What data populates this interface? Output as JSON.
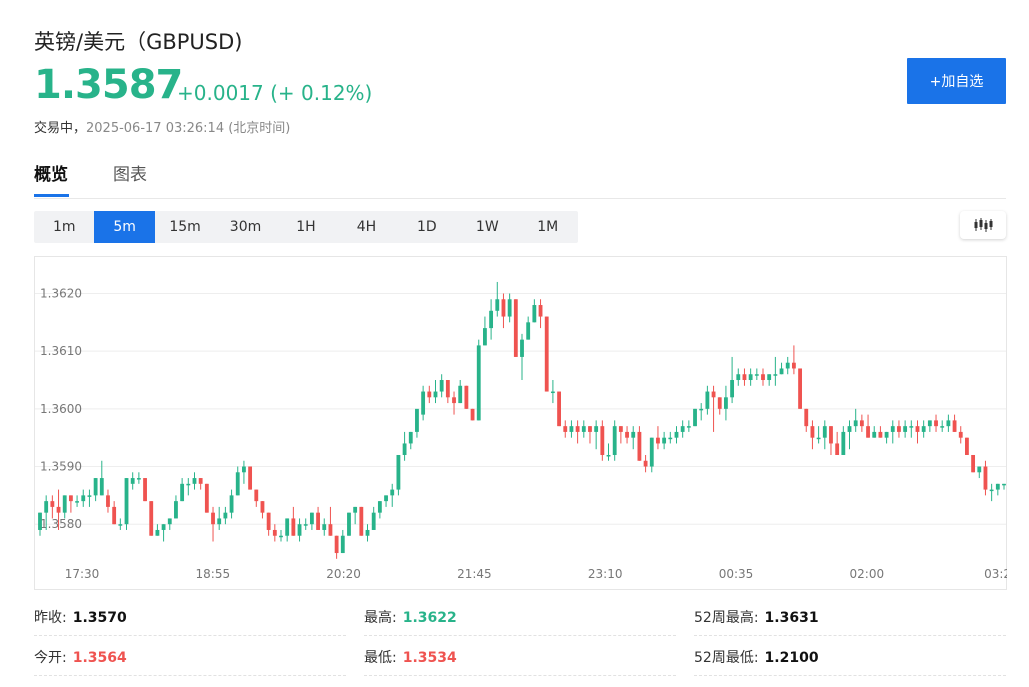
{
  "header": {
    "title": "英镑/美元（GBPUSD)",
    "price": "1.3587",
    "change": "+0.0017 (+ 0.12%)",
    "status": "交易中，",
    "timestamp": "2025-06-17 03:26:14 (北京时间)",
    "watchlist_button": "+加自选"
  },
  "tabs": [
    {
      "label": "概览",
      "active": true
    },
    {
      "label": "图表",
      "active": false
    }
  ],
  "periods": [
    {
      "label": "1m",
      "active": false
    },
    {
      "label": "5m",
      "active": true
    },
    {
      "label": "15m",
      "active": false
    },
    {
      "label": "30m",
      "active": false
    },
    {
      "label": "1H",
      "active": false
    },
    {
      "label": "4H",
      "active": false
    },
    {
      "label": "1D",
      "active": false
    },
    {
      "label": "1W",
      "active": false
    },
    {
      "label": "1M",
      "active": false
    }
  ],
  "toolbar": {
    "chart_type_icon": "candlestick-icon"
  },
  "colors": {
    "up": "#28b38a",
    "down": "#ef5350",
    "accent": "#1a73e8"
  },
  "chart_data": {
    "type": "candlestick",
    "y_ticks": [
      "1.3620",
      "1.3610",
      "1.3600",
      "1.3590",
      "1.3580"
    ],
    "y_tick_values": [
      1.362,
      1.361,
      1.36,
      1.359,
      1.358
    ],
    "x_ticks": [
      "17:30",
      "18:55",
      "20:20",
      "21:45",
      "23:10",
      "00:35",
      "02:00",
      "03:2"
    ],
    "ylim": [
      1.35731,
      1.36265
    ],
    "grid": true,
    "candles_ohlc": [
      [
        1.3579,
        1.3582,
        1.3578,
        1.3582
      ],
      [
        1.3582,
        1.3585,
        1.3579,
        1.3584
      ],
      [
        1.3584,
        1.3585,
        1.3581,
        1.3583
      ],
      [
        1.3583,
        1.3586,
        1.3579,
        1.3582
      ],
      [
        1.3582,
        1.3585,
        1.3581,
        1.3585
      ],
      [
        1.3585,
        1.3585,
        1.3582,
        1.3584
      ],
      [
        1.3584,
        1.3585,
        1.3583,
        1.3584
      ],
      [
        1.3584,
        1.3586,
        1.3583,
        1.3585
      ],
      [
        1.3585,
        1.3586,
        1.3583,
        1.3585
      ],
      [
        1.3585,
        1.3588,
        1.3584,
        1.3588
      ],
      [
        1.3585,
        1.3591,
        1.3585,
        1.3588
      ],
      [
        1.3585,
        1.3586,
        1.3582,
        1.3583
      ],
      [
        1.3583,
        1.3584,
        1.358,
        1.358
      ],
      [
        1.358,
        1.3581,
        1.3579,
        1.358
      ],
      [
        1.358,
        1.3588,
        1.3579,
        1.3588
      ],
      [
        1.3587,
        1.3589,
        1.3586,
        1.3588
      ],
      [
        1.3588,
        1.3589,
        1.3587,
        1.3588
      ],
      [
        1.3588,
        1.3588,
        1.3584,
        1.3584
      ],
      [
        1.3584,
        1.3584,
        1.3578,
        1.3578
      ],
      [
        1.3578,
        1.358,
        1.3578,
        1.3579
      ],
      [
        1.3579,
        1.358,
        1.3577,
        1.358
      ],
      [
        1.358,
        1.3581,
        1.3579,
        1.3581
      ],
      [
        1.3581,
        1.3585,
        1.3581,
        1.3584
      ],
      [
        1.3584,
        1.3588,
        1.3584,
        1.3587
      ],
      [
        1.3587,
        1.3588,
        1.3585,
        1.3587
      ],
      [
        1.3587,
        1.3589,
        1.3586,
        1.3588
      ],
      [
        1.3588,
        1.3588,
        1.3586,
        1.3587
      ],
      [
        1.3587,
        1.3587,
        1.3582,
        1.3582
      ],
      [
        1.3582,
        1.3583,
        1.3577,
        1.358
      ],
      [
        1.358,
        1.3583,
        1.3579,
        1.3581
      ],
      [
        1.3581,
        1.3583,
        1.358,
        1.3582
      ],
      [
        1.3582,
        1.3586,
        1.3581,
        1.3585
      ],
      [
        1.3585,
        1.359,
        1.3585,
        1.3589
      ],
      [
        1.3589,
        1.3591,
        1.3587,
        1.359
      ],
      [
        1.359,
        1.359,
        1.3586,
        1.3586
      ],
      [
        1.3586,
        1.3586,
        1.3583,
        1.3584
      ],
      [
        1.3584,
        1.3584,
        1.3581,
        1.3582
      ],
      [
        1.3582,
        1.3582,
        1.3578,
        1.3579
      ],
      [
        1.3579,
        1.358,
        1.3577,
        1.3578
      ],
      [
        1.3578,
        1.3579,
        1.3577,
        1.3578
      ],
      [
        1.3578,
        1.3581,
        1.3577,
        1.3581
      ],
      [
        1.3581,
        1.3583,
        1.3578,
        1.3578
      ],
      [
        1.3578,
        1.3581,
        1.3577,
        1.358
      ],
      [
        1.358,
        1.3581,
        1.3579,
        1.358
      ],
      [
        1.358,
        1.3582,
        1.3579,
        1.3582
      ],
      [
        1.3582,
        1.3583,
        1.3579,
        1.3579
      ],
      [
        1.3579,
        1.3581,
        1.3578,
        1.358
      ],
      [
        1.358,
        1.3583,
        1.3578,
        1.3578
      ],
      [
        1.3578,
        1.3578,
        1.3574,
        1.3575
      ],
      [
        1.3575,
        1.3579,
        1.3575,
        1.3578
      ],
      [
        1.3578,
        1.3582,
        1.3578,
        1.3582
      ],
      [
        1.3582,
        1.3583,
        1.358,
        1.3583
      ],
      [
        1.3583,
        1.3583,
        1.3578,
        1.3578
      ],
      [
        1.3578,
        1.358,
        1.3577,
        1.3579
      ],
      [
        1.3579,
        1.3583,
        1.3579,
        1.3582
      ],
      [
        1.3582,
        1.3584,
        1.3581,
        1.3584
      ],
      [
        1.3584,
        1.3585,
        1.3583,
        1.3585
      ],
      [
        1.3585,
        1.3587,
        1.3583,
        1.3586
      ],
      [
        1.3586,
        1.3592,
        1.3585,
        1.3592
      ],
      [
        1.3592,
        1.3596,
        1.3591,
        1.3594
      ],
      [
        1.3594,
        1.3596,
        1.3593,
        1.3596
      ],
      [
        1.3596,
        1.3599,
        1.3595,
        1.36
      ],
      [
        1.3599,
        1.3604,
        1.3598,
        1.3603
      ],
      [
        1.3603,
        1.3604,
        1.3601,
        1.3602
      ],
      [
        1.3602,
        1.3605,
        1.3601,
        1.3603
      ],
      [
        1.3603,
        1.3606,
        1.3602,
        1.3605
      ],
      [
        1.3605,
        1.3605,
        1.3601,
        1.3602
      ],
      [
        1.3602,
        1.3603,
        1.3599,
        1.3601
      ],
      [
        1.3601,
        1.3605,
        1.3601,
        1.3604
      ],
      [
        1.3604,
        1.3604,
        1.36,
        1.36
      ],
      [
        1.36,
        1.36,
        1.3598,
        1.3598
      ],
      [
        1.3598,
        1.3612,
        1.3598,
        1.3611
      ],
      [
        1.3611,
        1.3616,
        1.3611,
        1.3614
      ],
      [
        1.3614,
        1.3619,
        1.3612,
        1.3617
      ],
      [
        1.3617,
        1.3622,
        1.3616,
        1.3619
      ],
      [
        1.3619,
        1.362,
        1.3614,
        1.3616
      ],
      [
        1.3616,
        1.362,
        1.3615,
        1.3619
      ],
      [
        1.3619,
        1.3619,
        1.3609,
        1.3609
      ],
      [
        1.3609,
        1.3613,
        1.3605,
        1.3612
      ],
      [
        1.3612,
        1.3616,
        1.3612,
        1.3615
      ],
      [
        1.3615,
        1.3619,
        1.3615,
        1.3618
      ],
      [
        1.3618,
        1.3619,
        1.3614,
        1.3616
      ],
      [
        1.3616,
        1.3616,
        1.3603,
        1.3603
      ],
      [
        1.3603,
        1.3605,
        1.3601,
        1.3603
      ],
      [
        1.3603,
        1.3603,
        1.3597,
        1.3597
      ],
      [
        1.3597,
        1.3598,
        1.3595,
        1.3596
      ],
      [
        1.3596,
        1.3598,
        1.3595,
        1.3597
      ],
      [
        1.3597,
        1.3598,
        1.3594,
        1.3596
      ],
      [
        1.3596,
        1.3598,
        1.3595,
        1.3597
      ],
      [
        1.3597,
        1.3597,
        1.3594,
        1.3596
      ],
      [
        1.3596,
        1.3598,
        1.3593,
        1.3597
      ],
      [
        1.3597,
        1.3598,
        1.3591,
        1.3592
      ],
      [
        1.3592,
        1.3594,
        1.3591,
        1.3592
      ],
      [
        1.3592,
        1.3598,
        1.3591,
        1.3597
      ],
      [
        1.3597,
        1.3597,
        1.3594,
        1.3596
      ],
      [
        1.3596,
        1.3597,
        1.3594,
        1.3595
      ],
      [
        1.3595,
        1.3597,
        1.3593,
        1.3596
      ],
      [
        1.3596,
        1.3597,
        1.3591,
        1.3591
      ],
      [
        1.3591,
        1.3592,
        1.3589,
        1.359
      ],
      [
        1.359,
        1.3595,
        1.3589,
        1.3595
      ],
      [
        1.3595,
        1.3597,
        1.3593,
        1.3594
      ],
      [
        1.3594,
        1.3596,
        1.3593,
        1.3595
      ],
      [
        1.3595,
        1.3596,
        1.3594,
        1.3595
      ],
      [
        1.3595,
        1.3597,
        1.3594,
        1.3596
      ],
      [
        1.3596,
        1.3598,
        1.3595,
        1.3597
      ],
      [
        1.3597,
        1.3598,
        1.3596,
        1.3597
      ],
      [
        1.3597,
        1.36,
        1.3597,
        1.36
      ],
      [
        1.36,
        1.3601,
        1.3598,
        1.36
      ],
      [
        1.36,
        1.3604,
        1.3599,
        1.3603
      ],
      [
        1.3603,
        1.3604,
        1.3596,
        1.3602
      ],
      [
        1.3602,
        1.3602,
        1.3599,
        1.36
      ],
      [
        1.36,
        1.3604,
        1.3598,
        1.3602
      ],
      [
        1.3602,
        1.3609,
        1.3601,
        1.3605
      ],
      [
        1.3605,
        1.3607,
        1.3604,
        1.3606
      ],
      [
        1.3606,
        1.3607,
        1.3604,
        1.3605
      ],
      [
        1.3605,
        1.3607,
        1.3604,
        1.3606
      ],
      [
        1.3606,
        1.3607,
        1.3605,
        1.3606
      ],
      [
        1.3606,
        1.3607,
        1.3604,
        1.3605
      ],
      [
        1.3605,
        1.3606,
        1.3604,
        1.3606
      ],
      [
        1.3606,
        1.3609,
        1.3604,
        1.3606
      ],
      [
        1.3606,
        1.3608,
        1.3606,
        1.3607
      ],
      [
        1.3607,
        1.3609,
        1.3606,
        1.3608
      ],
      [
        1.3608,
        1.3611,
        1.3606,
        1.3607
      ],
      [
        1.3607,
        1.3607,
        1.36,
        1.36
      ],
      [
        1.36,
        1.36,
        1.3596,
        1.3597
      ],
      [
        1.3597,
        1.3598,
        1.3593,
        1.3595
      ],
      [
        1.3595,
        1.3597,
        1.3594,
        1.3595
      ],
      [
        1.3595,
        1.3598,
        1.3593,
        1.3597
      ],
      [
        1.3597,
        1.3597,
        1.3592,
        1.3594
      ],
      [
        1.3594,
        1.3596,
        1.3592,
        1.3592
      ],
      [
        1.3592,
        1.3597,
        1.3592,
        1.3596
      ],
      [
        1.3596,
        1.3598,
        1.3593,
        1.3597
      ],
      [
        1.3597,
        1.36,
        1.3596,
        1.3598
      ],
      [
        1.3598,
        1.3599,
        1.3596,
        1.3597
      ],
      [
        1.3597,
        1.3599,
        1.3595,
        1.3595
      ],
      [
        1.3595,
        1.3597,
        1.3595,
        1.3596
      ],
      [
        1.3596,
        1.3597,
        1.3595,
        1.3595
      ],
      [
        1.3595,
        1.3596,
        1.3594,
        1.3596
      ],
      [
        1.3596,
        1.3598,
        1.3594,
        1.3597
      ],
      [
        1.3597,
        1.3598,
        1.3595,
        1.3596
      ],
      [
        1.3596,
        1.3598,
        1.3595,
        1.3597
      ],
      [
        1.3597,
        1.3598,
        1.3595,
        1.3597
      ],
      [
        1.3597,
        1.3598,
        1.3594,
        1.3596
      ],
      [
        1.3596,
        1.3598,
        1.3595,
        1.3597
      ],
      [
        1.3597,
        1.3598,
        1.3596,
        1.3598
      ],
      [
        1.3598,
        1.3599,
        1.3596,
        1.3597
      ],
      [
        1.3597,
        1.3598,
        1.3596,
        1.3597
      ],
      [
        1.3597,
        1.3599,
        1.3596,
        1.3598
      ],
      [
        1.3598,
        1.3599,
        1.3596,
        1.3596
      ],
      [
        1.3596,
        1.3597,
        1.3594,
        1.3595
      ],
      [
        1.3595,
        1.3595,
        1.3592,
        1.3592
      ],
      [
        1.3592,
        1.3592,
        1.3589,
        1.3589
      ],
      [
        1.3589,
        1.359,
        1.3588,
        1.359
      ],
      [
        1.359,
        1.3591,
        1.3585,
        1.3586
      ],
      [
        1.3586,
        1.3587,
        1.3584,
        1.3586
      ],
      [
        1.3586,
        1.3587,
        1.3585,
        1.3587
      ],
      [
        1.3587,
        1.3587,
        1.3586,
        1.3587
      ]
    ]
  },
  "stats": {
    "prev_close_label": "昨收:",
    "prev_close": "1.3570",
    "open_label": "今开:",
    "open": "1.3564",
    "high_label": "最高:",
    "high": "1.3622",
    "low_label": "最低:",
    "low": "1.3534",
    "high52_label": "52周最高:",
    "high52": "1.3631",
    "low52_label": "52周最低:",
    "low52": "1.2100"
  }
}
